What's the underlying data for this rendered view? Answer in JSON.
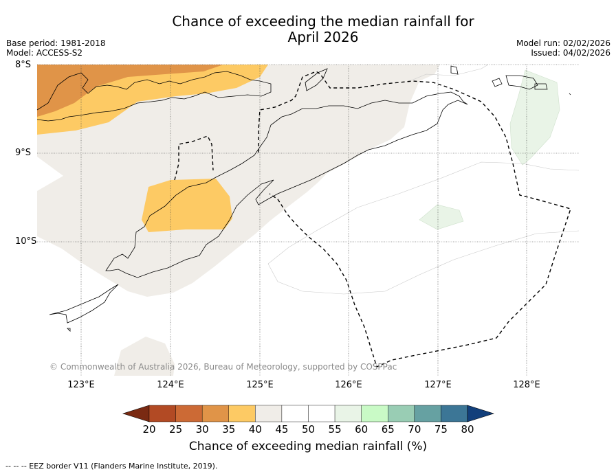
{
  "title_line1": "Chance of exceeding the median rainfall for",
  "title_line2": "April 2026",
  "base_period": "Base period: 1981-2018",
  "model": "Model: ACCESS-S2",
  "model_run": "Model run: 02/02/2026",
  "issued": "Issued: 04/02/2026",
  "lat_labels": [
    "8°S",
    "9°S",
    "10°S"
  ],
  "lon_labels": [
    "123°E",
    "124°E",
    "125°E",
    "126°E",
    "127°E",
    "128°E"
  ],
  "copyright": "© Commonwealth of Australia 2026, Bureau of Meteorology, supported by COSPPac",
  "colorbar": {
    "ticks": [
      "20",
      "25",
      "30",
      "35",
      "40",
      "45",
      "50",
      "55",
      "60",
      "65",
      "70",
      "75",
      "80"
    ],
    "colors": [
      "#7a2a12",
      "#b24a24",
      "#cc6a35",
      "#e09448",
      "#fdca64",
      "#f0ede8",
      "#ffffff",
      "#ffffff",
      "#e9f4e7",
      "#c9fac6",
      "#99cdb4",
      "#66a1a2",
      "#3c7696",
      "#123f7b"
    ],
    "title": "Chance of exceeding median rainfall (%)"
  },
  "footnote": "--  --  -- EEZ border V11 (Flanders Marine Institute, 2019)."
}
